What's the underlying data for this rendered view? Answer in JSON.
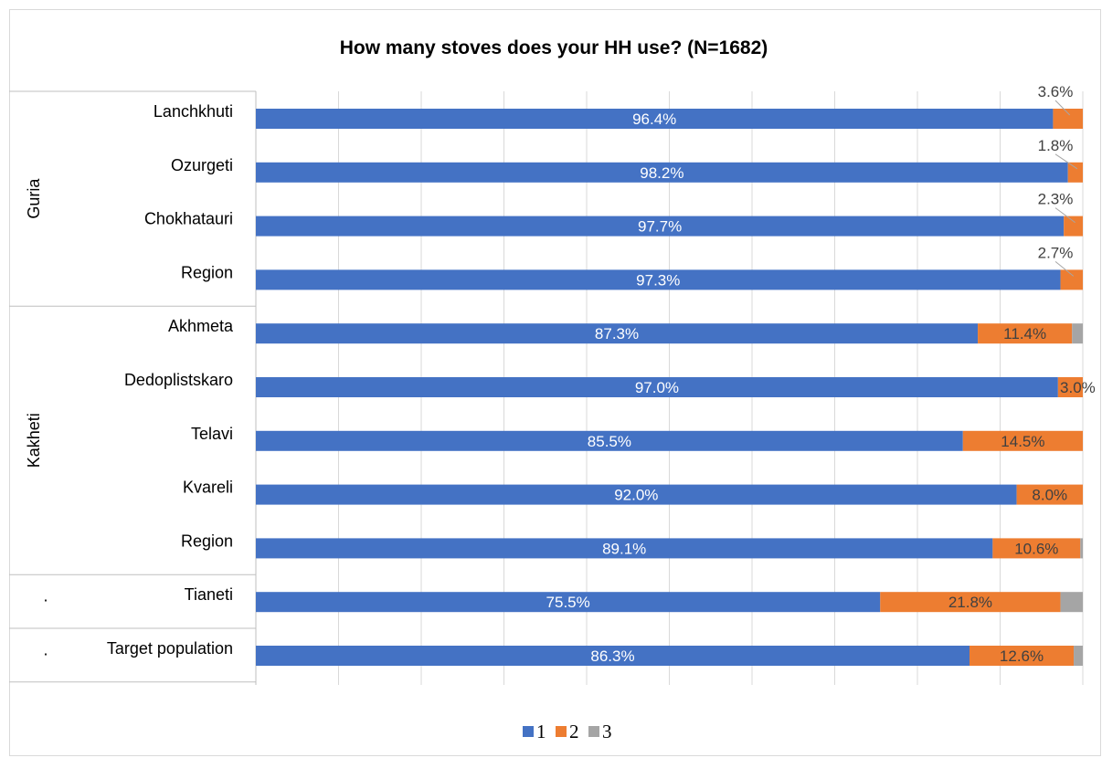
{
  "chart_data": {
    "type": "bar",
    "orientation": "horizontal",
    "stacked": true,
    "title": "How many stoves does your HH use?  (N=1682)",
    "xlim": [
      0,
      100
    ],
    "grid": true,
    "legend_position": "bottom",
    "groups": [
      {
        "name": "Guria",
        "categories": [
          "Lanchkhuti",
          "Ozurgeti",
          "Chokhatauri",
          "Region"
        ]
      },
      {
        "name": "Kakheti",
        "categories": [
          "Akhmeta",
          "Dedoplistskaro",
          "Telavi",
          "Kvareli",
          "Region"
        ]
      },
      {
        "name": "·",
        "categories": [
          "Tianeti"
        ]
      },
      {
        "name": "·",
        "categories": [
          "Target population"
        ]
      }
    ],
    "categories": [
      "Lanchkhuti",
      "Ozurgeti",
      "Chokhatauri",
      "Region",
      "Akhmeta",
      "Dedoplistskaro",
      "Telavi",
      "Kvareli",
      "Region",
      "Tianeti",
      "Target population"
    ],
    "series": [
      {
        "name": "1",
        "color": "#4472C4",
        "values": [
          96.4,
          98.2,
          97.7,
          97.3,
          87.3,
          97.0,
          85.5,
          92.0,
          89.1,
          75.5,
          86.3
        ],
        "labels": [
          "96.4%",
          "98.2%",
          "97.7%",
          "97.3%",
          "87.3%",
          "97.0%",
          "85.5%",
          "92.0%",
          "89.1%",
          "75.5%",
          "86.3%"
        ]
      },
      {
        "name": "2",
        "color": "#ED7D31",
        "values": [
          3.6,
          1.8,
          2.3,
          2.7,
          11.4,
          3.0,
          14.5,
          8.0,
          10.6,
          21.8,
          12.6
        ],
        "labels": [
          "3.6%",
          "1.8%",
          "2.3%",
          "2.7%",
          "11.4%",
          "3.0%",
          "14.5%",
          "8.0%",
          "10.6%",
          "21.8%",
          "12.6%"
        ]
      },
      {
        "name": "3",
        "color": "#A5A5A5",
        "values": [
          0,
          0,
          0,
          0,
          1.3,
          0,
          0,
          0,
          0.3,
          2.7,
          1.1
        ],
        "labels": [
          "",
          "",
          "",
          "",
          "",
          "",
          "",
          "",
          "",
          "",
          ""
        ]
      }
    ]
  }
}
